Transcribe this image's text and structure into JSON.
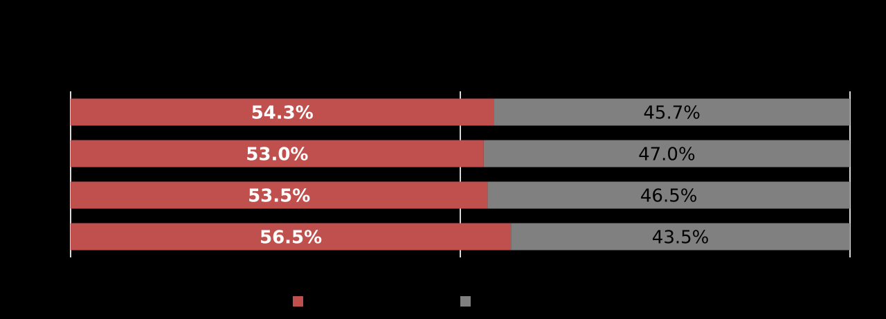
{
  "chart_data": {
    "type": "stacked-bar-horizontal",
    "categories": [
      null,
      null,
      null,
      null
    ],
    "series": [
      {
        "color": "#c0504d",
        "values": [
          54.3,
          53.0,
          53.5,
          56.5
        ],
        "value_labels": [
          "54.3%",
          "53.0%",
          "53.5%",
          "56.5%"
        ]
      },
      {
        "color": "#808080",
        "values": [
          45.7,
          47.0,
          46.5,
          43.5
        ],
        "value_labels": [
          "45.7%",
          "47.0%",
          "46.5%",
          "43.5%"
        ]
      }
    ],
    "xlim": [
      0,
      100
    ],
    "xticks": [
      0,
      50,
      100
    ],
    "grid": true
  }
}
